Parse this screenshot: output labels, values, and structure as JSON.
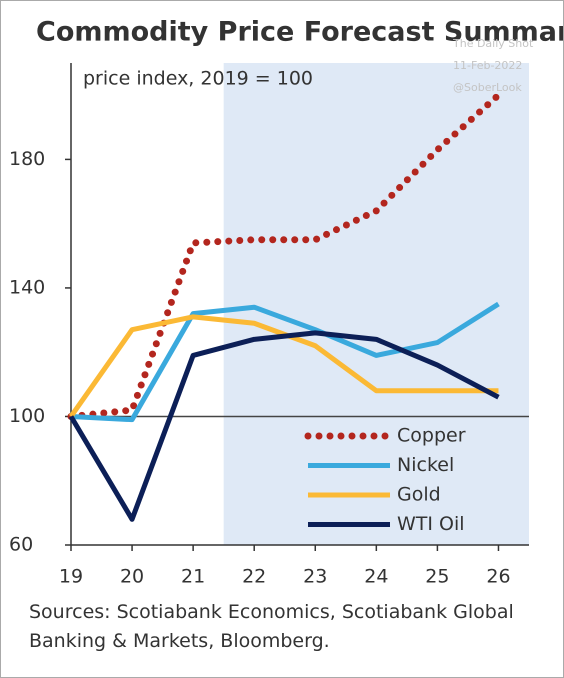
{
  "chart_data": {
    "type": "line",
    "title": "Commodity Price Forecast Summary",
    "annotation": "price index, 2019 = 100",
    "source": "Sources: Scotiabank Economics, Scotiabank Global Banking & Markets, Bloomberg.",
    "watermark": [
      "The Daily Shot",
      "11-Feb-2022",
      "@SoberLook"
    ],
    "x": [
      19,
      20,
      21,
      22,
      23,
      24,
      25,
      26
    ],
    "series": [
      {
        "name": "Copper",
        "color": "#b3261e",
        "dash": "dotted",
        "values": [
          100,
          102,
          154,
          155,
          155,
          164,
          183,
          200
        ]
      },
      {
        "name": "Nickel",
        "color": "#3aa9dd",
        "values": [
          100,
          99,
          132,
          134,
          127,
          119,
          123,
          135
        ]
      },
      {
        "name": "Gold",
        "color": "#fbb935",
        "values": [
          100,
          127,
          131,
          129,
          122,
          108,
          108,
          108
        ]
      },
      {
        "name": "WTI Oil",
        "color": "#0c1f57",
        "values": [
          100,
          68,
          119,
          124,
          126,
          124,
          116,
          106
        ]
      }
    ],
    "xlim": [
      19,
      26.5
    ],
    "xticks": [
      19,
      20,
      21,
      22,
      23,
      24,
      25,
      26
    ],
    "ylim": [
      60,
      210
    ],
    "yticks": [
      60,
      100,
      140,
      180
    ],
    "reference_line": 100,
    "shaded_xrange": [
      21.5,
      26.5
    ],
    "legend": "lower right"
  }
}
